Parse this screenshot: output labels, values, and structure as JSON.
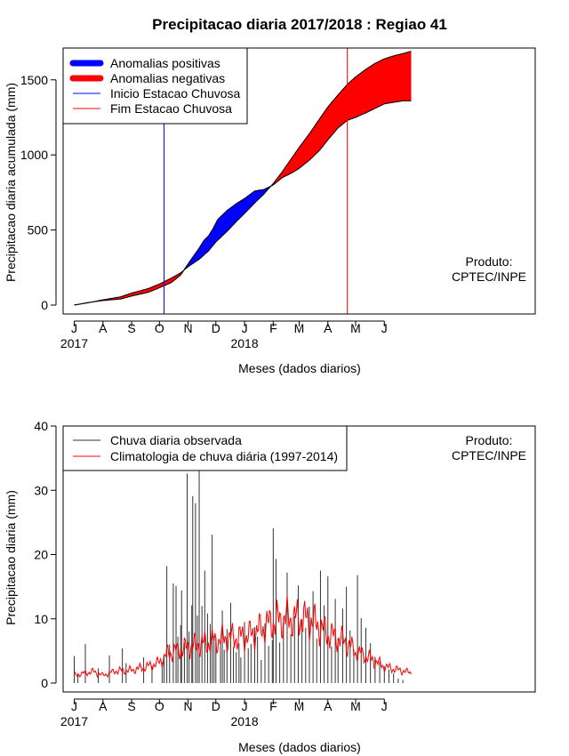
{
  "page_title": "Precipitacao diaria 2017/2018 : Regiao 41",
  "chart_data": [
    {
      "type": "area",
      "ylabel": "Precipitacao diaria acumulada (mm)",
      "xlabel": "Meses (dados diarios)",
      "ylim": [
        0,
        1700
      ],
      "yticks": [
        0,
        500,
        1000,
        1500
      ],
      "xlim_days": [
        -12,
        498
      ],
      "month_ticks": [
        {
          "label": "J",
          "day": 0
        },
        {
          "label": "A",
          "day": 31
        },
        {
          "label": "S",
          "day": 62
        },
        {
          "label": "O",
          "day": 92
        },
        {
          "label": "N",
          "day": 123
        },
        {
          "label": "D",
          "day": 153
        },
        {
          "label": "J",
          "day": 184
        },
        {
          "label": "F",
          "day": 215
        },
        {
          "label": "M",
          "day": 243
        },
        {
          "label": "A",
          "day": 274
        },
        {
          "label": "M",
          "day": 304
        },
        {
          "label": "J",
          "day": 335
        }
      ],
      "year_labels": [
        {
          "label": "2017",
          "day": 0
        },
        {
          "label": "2018",
          "day": 184
        }
      ],
      "legend": [
        {
          "label": "Anomalias positivas",
          "color": "#0000ff",
          "style": "thick"
        },
        {
          "label": "Anomalias negativas",
          "color": "#ff0000",
          "style": "thick"
        },
        {
          "label": "Inicio Estacao Chuvosa",
          "color": "#0000ff",
          "style": "thin"
        },
        {
          "label": "Fim Estacao Chuvosa",
          "color": "#ff0000",
          "style": "thin"
        }
      ],
      "annotation": [
        "Produto:",
        "CPTEC/INPE"
      ],
      "rainy_season_start_day": 97,
      "rainy_season_end_day": 295,
      "series": [
        {
          "name": "Climatologia acumulada",
          "days": [
            0,
            15,
            31,
            50,
            62,
            80,
            92,
            105,
            115,
            123,
            135,
            145,
            153,
            165,
            175,
            184,
            195,
            205,
            215,
            225,
            235,
            243,
            255,
            265,
            274,
            285,
            295,
            304,
            315,
            325,
            335,
            345,
            355,
            364
          ],
          "values": [
            0,
            15,
            35,
            55,
            80,
            110,
            140,
            180,
            215,
            255,
            305,
            360,
            420,
            490,
            555,
            610,
            680,
            740,
            810,
            890,
            980,
            1050,
            1150,
            1240,
            1320,
            1400,
            1470,
            1520,
            1570,
            1610,
            1640,
            1660,
            1675,
            1690
          ]
        },
        {
          "name": "Chuva observada acumulada",
          "days": [
            0,
            15,
            31,
            50,
            62,
            80,
            92,
            105,
            115,
            123,
            135,
            140,
            145,
            150,
            155,
            165,
            175,
            184,
            195,
            205,
            215,
            225,
            235,
            243,
            255,
            265,
            274,
            285,
            295,
            304,
            315,
            325,
            335,
            345,
            355,
            364
          ],
          "values": [
            0,
            17,
            30,
            40,
            60,
            85,
            115,
            150,
            200,
            275,
            380,
            430,
            460,
            510,
            570,
            630,
            675,
            710,
            760,
            770,
            800,
            850,
            880,
            910,
            970,
            1030,
            1100,
            1180,
            1230,
            1250,
            1280,
            1310,
            1340,
            1350,
            1360,
            1360
          ]
        }
      ]
    },
    {
      "type": "bar",
      "ylabel": "Precipitacao diaria (mm)",
      "xlabel": "Meses (dados diarios)",
      "ylim": [
        0,
        40
      ],
      "yticks": [
        0,
        10,
        20,
        30,
        40
      ],
      "xlim_days": [
        -12,
        498
      ],
      "month_ticks": [
        {
          "label": "J",
          "day": 0
        },
        {
          "label": "A",
          "day": 31
        },
        {
          "label": "S",
          "day": 62
        },
        {
          "label": "O",
          "day": 92
        },
        {
          "label": "N",
          "day": 123
        },
        {
          "label": "D",
          "day": 153
        },
        {
          "label": "J",
          "day": 184
        },
        {
          "label": "F",
          "day": 215
        },
        {
          "label": "M",
          "day": 243
        },
        {
          "label": "A",
          "day": 274
        },
        {
          "label": "M",
          "day": 304
        },
        {
          "label": "J",
          "day": 335
        }
      ],
      "year_labels": [
        {
          "label": "2017",
          "day": 0
        },
        {
          "label": "2018",
          "day": 184
        }
      ],
      "legend": [
        {
          "label": "Chuva diaria observada",
          "color": "#333333"
        },
        {
          "label": "Climatologia de chuva diária (1997-2014)",
          "color": "#ff0000"
        }
      ],
      "annotation": [
        "Produto:",
        "CPTEC/INPE"
      ],
      "observed_days": [
        0,
        4,
        12,
        26,
        38,
        52,
        56,
        75,
        84,
        95,
        97,
        100,
        103,
        107,
        110,
        112,
        115,
        116,
        119,
        122,
        124,
        127,
        128,
        131,
        133,
        135,
        138,
        141,
        144,
        147,
        149,
        151,
        153,
        158,
        160,
        162,
        165,
        169,
        172,
        175,
        178,
        180,
        184,
        188,
        191,
        195,
        198,
        202,
        206,
        210,
        214,
        215,
        218,
        222,
        226,
        230,
        234,
        238,
        242,
        246,
        250,
        254,
        258,
        262,
        266,
        270,
        274,
        278,
        282,
        285,
        290,
        294,
        298,
        302,
        306,
        310,
        315,
        320,
        325,
        330,
        335,
        340,
        345,
        350,
        355
      ],
      "observed_values": [
        4.2,
        1.5,
        6.1,
        2.3,
        4.3,
        5.4,
        3.1,
        4.0,
        2.7,
        3.2,
        4.5,
        18.2,
        6.0,
        15.5,
        15.1,
        7.2,
        9.0,
        14.4,
        6.3,
        32.6,
        8.0,
        12.1,
        29.1,
        28.0,
        10.5,
        33.8,
        12.0,
        17.5,
        10.8,
        9.2,
        23.1,
        7.4,
        7.1,
        6.5,
        11.3,
        5.2,
        8.4,
        12.5,
        5.6,
        4.8,
        6.2,
        4.0,
        9.5,
        5.4,
        6.1,
        8.7,
        7.2,
        3.6,
        9.3,
        5.8,
        6.7,
        24.1,
        19.3,
        6.3,
        9.4,
        17.2,
        7.6,
        10.4,
        15.2,
        9.9,
        8.6,
        11.9,
        14.3,
        6.9,
        17.5,
        12.1,
        16.6,
        5.7,
        13.1,
        7.0,
        11.6,
        15.0,
        8.2,
        5.2,
        16.8,
        10.1,
        8.6,
        6.2,
        4.1,
        3.4,
        2.6,
        2.1,
        1.5,
        0.7,
        0.5
      ],
      "climatology_days": [
        0,
        10,
        20,
        31,
        45,
        62,
        80,
        92,
        100,
        110,
        123,
        135,
        145,
        153,
        165,
        175,
        184,
        195,
        205,
        215,
        225,
        235,
        243,
        255,
        265,
        274,
        285,
        295,
        304,
        315,
        325,
        335,
        345,
        355,
        364
      ],
      "climatology_values": [
        1.2,
        1.5,
        1.8,
        1.2,
        1.9,
        2.0,
        2.6,
        3.2,
        4.5,
        5.0,
        5.6,
        6.0,
        6.3,
        6.6,
        7.0,
        7.1,
        7.2,
        7.8,
        8.8,
        9.5,
        10.0,
        10.1,
        10.0,
        9.8,
        8.8,
        7.6,
        7.0,
        6.2,
        4.8,
        4.2,
        3.4,
        2.6,
        2.2,
        1.9,
        1.6
      ]
    }
  ]
}
